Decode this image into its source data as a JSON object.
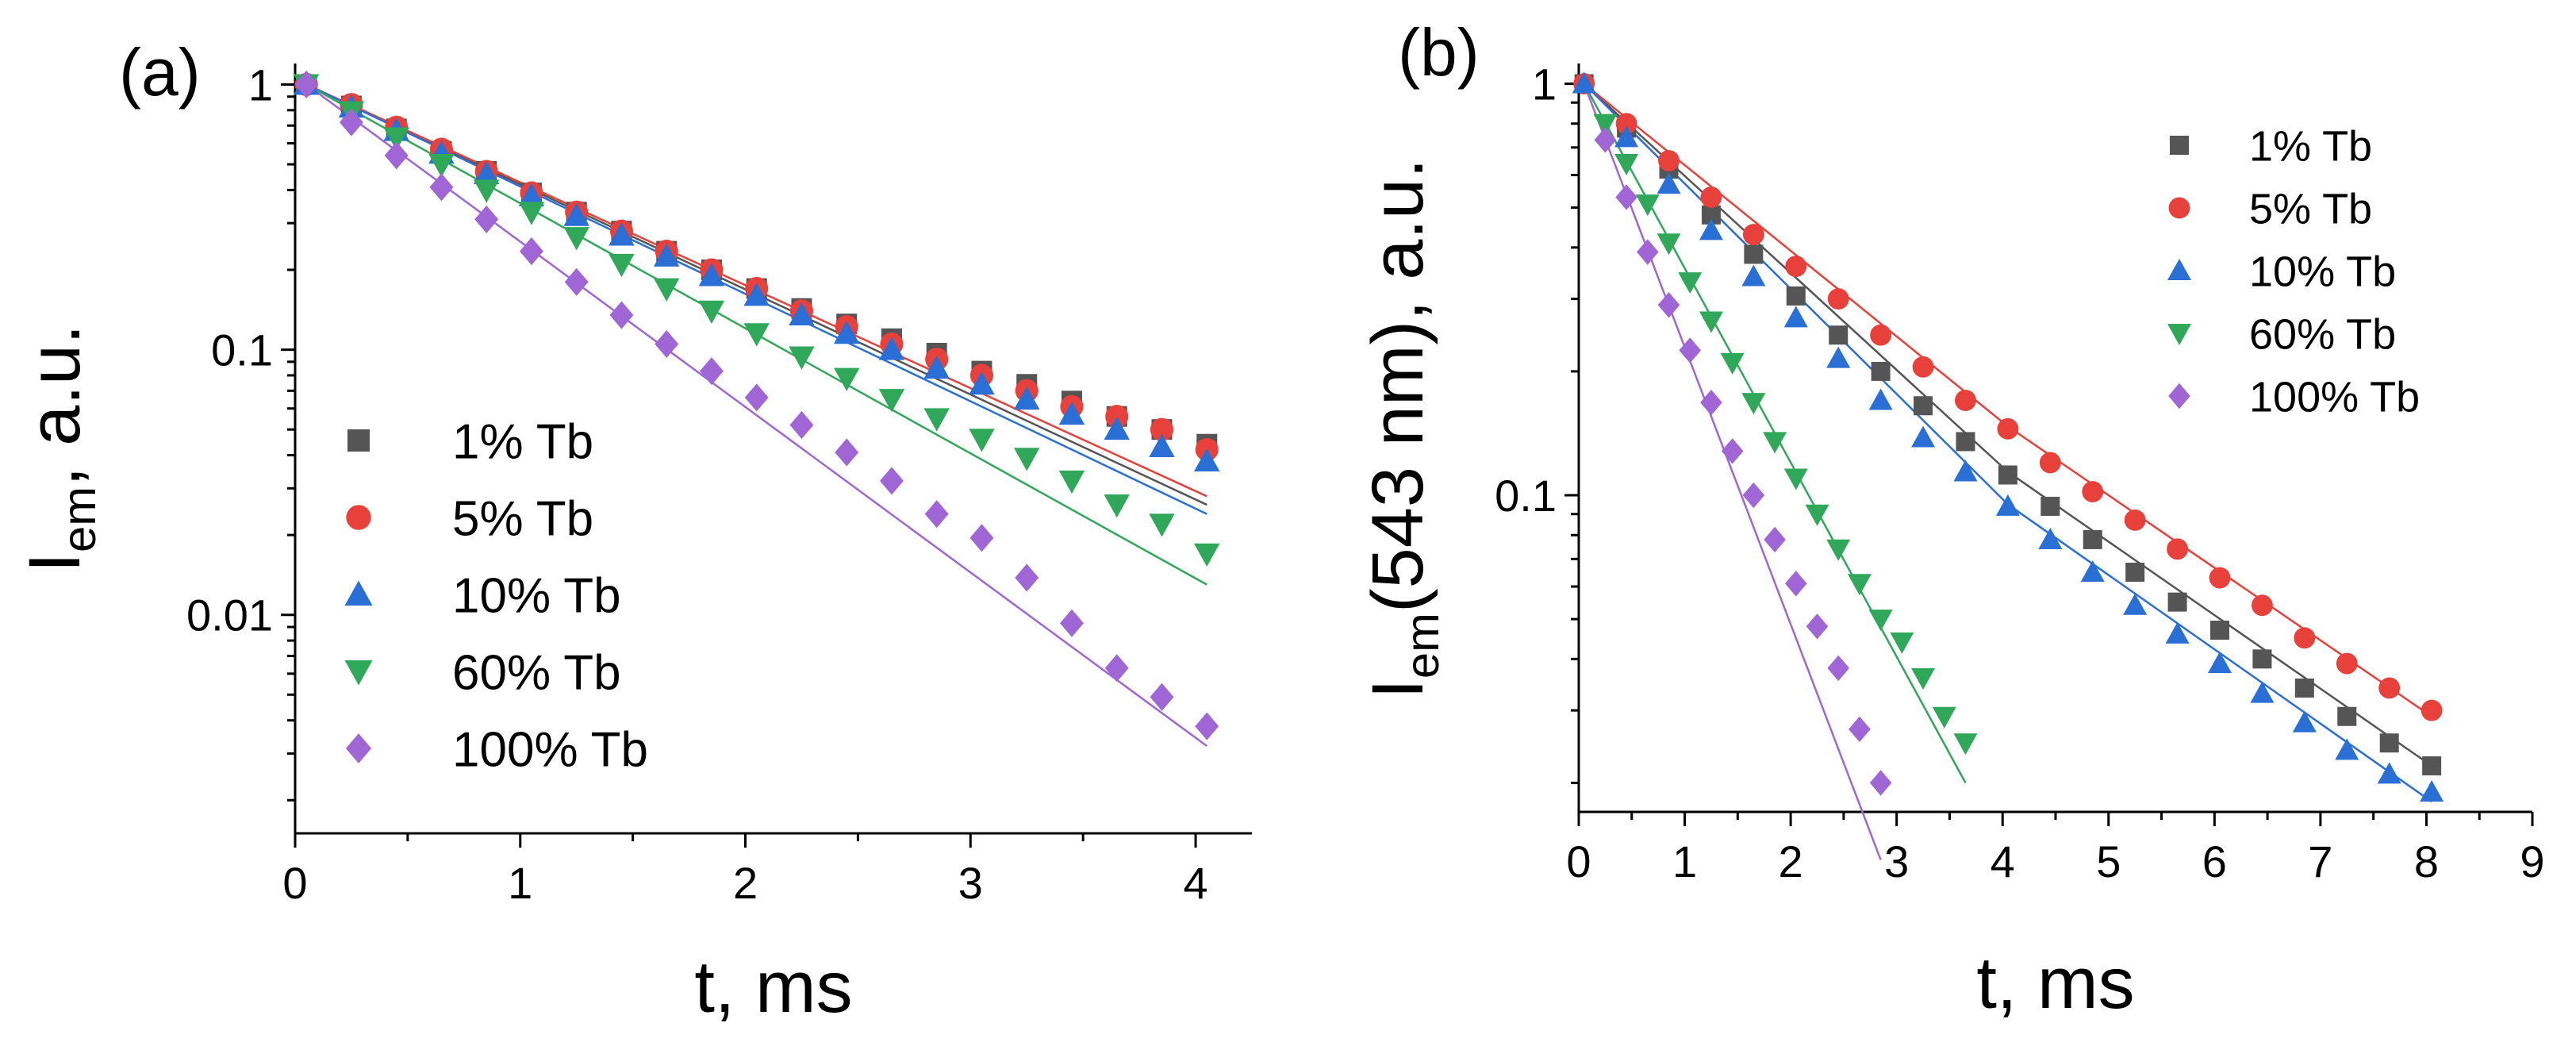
{
  "chart_data": [
    {
      "type": "scatter",
      "panel_label": "(a)",
      "xlabel": "t, ms",
      "ylabel_main": "I",
      "ylabel_sub": "em",
      "ylabel_rest": ", a.u.",
      "yscale": "log",
      "xlim": [
        0,
        4.25
      ],
      "ylim": [
        0.0015,
        1.2
      ],
      "xticks": [
        0,
        1,
        2,
        3,
        4
      ],
      "xtick_labels": [
        "0",
        "1",
        "2",
        "3",
        "4"
      ],
      "yticks": [
        0.01,
        0.1,
        1
      ],
      "ytick_labels": [
        "0.01",
        "0.1",
        "1"
      ],
      "legend_position": "bottom-left",
      "series": [
        {
          "name": "1% Tb",
          "color": "#555555",
          "marker": "square",
          "x": [
            0.05,
            0.25,
            0.45,
            0.65,
            0.85,
            1.05,
            1.25,
            1.45,
            1.65,
            1.85,
            2.05,
            2.25,
            2.45,
            2.65,
            2.85,
            3.05,
            3.25,
            3.45,
            3.65,
            3.85,
            4.05
          ],
          "y": [
            1.0,
            0.83,
            0.68,
            0.56,
            0.47,
            0.39,
            0.33,
            0.28,
            0.235,
            0.2,
            0.17,
            0.143,
            0.125,
            0.11,
            0.097,
            0.083,
            0.074,
            0.064,
            0.056,
            0.05,
            0.044
          ],
          "fit": [
            [
              0.05,
              1.0
            ],
            [
              4.05,
              0.026
            ]
          ]
        },
        {
          "name": "5% Tb",
          "color": "#e8403a",
          "marker": "circle",
          "x": [
            0.05,
            0.25,
            0.45,
            0.65,
            0.85,
            1.05,
            1.25,
            1.45,
            1.65,
            1.85,
            2.05,
            2.25,
            2.45,
            2.65,
            2.85,
            3.05,
            3.25,
            3.45,
            3.65,
            3.85,
            4.05
          ],
          "y": [
            1.0,
            0.84,
            0.69,
            0.57,
            0.47,
            0.39,
            0.33,
            0.28,
            0.235,
            0.2,
            0.17,
            0.14,
            0.122,
            0.105,
            0.092,
            0.08,
            0.07,
            0.061,
            0.056,
            0.05,
            0.042
          ],
          "fit": [
            [
              0.05,
              1.0
            ],
            [
              4.05,
              0.028
            ]
          ]
        },
        {
          "name": "10% Tb",
          "color": "#2a6fd6",
          "marker": "triangle-up",
          "x": [
            0.05,
            0.25,
            0.45,
            0.65,
            0.85,
            1.05,
            1.25,
            1.45,
            1.65,
            1.85,
            2.05,
            2.25,
            2.45,
            2.65,
            2.85,
            3.05,
            3.25,
            3.45,
            3.65,
            3.85,
            4.05
          ],
          "y": [
            1.0,
            0.82,
            0.67,
            0.55,
            0.46,
            0.38,
            0.32,
            0.27,
            0.225,
            0.19,
            0.16,
            0.135,
            0.115,
            0.1,
            0.085,
            0.074,
            0.065,
            0.057,
            0.05,
            0.043,
            0.038
          ],
          "fit": [
            [
              0.05,
              1.0
            ],
            [
              4.05,
              0.024
            ]
          ]
        },
        {
          "name": "60% Tb",
          "color": "#2fa85a",
          "marker": "triangle-down",
          "x": [
            0.05,
            0.25,
            0.45,
            0.65,
            0.85,
            1.05,
            1.25,
            1.45,
            1.65,
            1.85,
            2.05,
            2.25,
            2.45,
            2.65,
            2.85,
            3.05,
            3.25,
            3.45,
            3.65,
            3.85,
            4.05
          ],
          "y": [
            1.0,
            0.79,
            0.63,
            0.5,
            0.4,
            0.33,
            0.265,
            0.21,
            0.17,
            0.14,
            0.115,
            0.094,
            0.078,
            0.065,
            0.055,
            0.046,
            0.039,
            0.032,
            0.026,
            0.022,
            0.017
          ],
          "fit": [
            [
              0.05,
              1.0
            ],
            [
              4.05,
              0.013
            ]
          ]
        },
        {
          "name": "100% Tb",
          "color": "#a066d6",
          "marker": "diamond",
          "x": [
            0.05,
            0.25,
            0.45,
            0.65,
            0.85,
            1.05,
            1.25,
            1.45,
            1.65,
            1.85,
            2.05,
            2.25,
            2.45,
            2.65,
            2.85,
            3.05,
            3.25,
            3.45,
            3.65,
            3.85,
            4.05
          ],
          "y": [
            1.0,
            0.72,
            0.54,
            0.41,
            0.31,
            0.235,
            0.18,
            0.135,
            0.105,
            0.083,
            0.066,
            0.052,
            0.041,
            0.032,
            0.024,
            0.0195,
            0.0138,
            0.0093,
            0.0063,
            0.0049,
            0.0038
          ],
          "fit": [
            [
              0.05,
              1.0
            ],
            [
              4.05,
              0.0032
            ]
          ]
        }
      ]
    },
    {
      "type": "scatter",
      "panel_label": "(b)",
      "xlabel": "t, ms",
      "ylabel_main": "I",
      "ylabel_sub": "em",
      "ylabel_rest": "(543 nm), a.u.",
      "yscale": "log",
      "xlim": [
        0,
        9
      ],
      "ylim": [
        0.017,
        1.12
      ],
      "xticks": [
        0,
        1,
        2,
        3,
        4,
        5,
        6,
        7,
        8,
        9
      ],
      "xtick_labels": [
        "0",
        "1",
        "2",
        "3",
        "4",
        "5",
        "6",
        "7",
        "8",
        "9"
      ],
      "yticks": [
        0.1,
        1
      ],
      "ytick_labels": [
        "0.1",
        "1"
      ],
      "legend_position": "top-right",
      "series": [
        {
          "name": "1% Tb",
          "color": "#555555",
          "marker": "square",
          "x": [
            0.05,
            0.45,
            0.85,
            1.25,
            1.65,
            2.05,
            2.45,
            2.85,
            3.25,
            3.65,
            4.05,
            4.45,
            4.85,
            5.25,
            5.65,
            6.05,
            6.45,
            6.85,
            7.25,
            7.65,
            8.05
          ],
          "y": [
            1.0,
            0.78,
            0.62,
            0.48,
            0.385,
            0.305,
            0.245,
            0.2,
            0.165,
            0.135,
            0.112,
            0.094,
            0.078,
            0.065,
            0.055,
            0.047,
            0.04,
            0.034,
            0.029,
            0.025,
            0.022
          ],
          "fit": [
            [
              0.05,
              1.0
            ],
            [
              4.05,
              0.114
            ],
            [
              8.05,
              0.022
            ]
          ]
        },
        {
          "name": "5% Tb",
          "color": "#e8403a",
          "marker": "circle",
          "x": [
            0.05,
            0.45,
            0.85,
            1.25,
            1.65,
            2.05,
            2.45,
            2.85,
            3.25,
            3.65,
            4.05,
            4.45,
            4.85,
            5.25,
            5.65,
            6.05,
            6.45,
            6.85,
            7.25,
            7.65,
            8.05
          ],
          "y": [
            1.0,
            0.8,
            0.65,
            0.53,
            0.43,
            0.36,
            0.3,
            0.245,
            0.205,
            0.17,
            0.145,
            0.12,
            0.102,
            0.087,
            0.074,
            0.063,
            0.054,
            0.045,
            0.039,
            0.034,
            0.03
          ],
          "fit": [
            [
              0.05,
              1.0
            ],
            [
              4.05,
              0.147
            ],
            [
              8.05,
              0.029
            ]
          ]
        },
        {
          "name": "10% Tb",
          "color": "#2a6fd6",
          "marker": "triangle-up",
          "x": [
            0.05,
            0.45,
            0.85,
            1.25,
            1.65,
            2.05,
            2.45,
            2.85,
            3.25,
            3.65,
            4.05,
            4.45,
            4.85,
            5.25,
            5.65,
            6.05,
            6.45,
            6.85,
            7.25,
            7.65,
            8.05
          ],
          "y": [
            1.0,
            0.74,
            0.57,
            0.44,
            0.34,
            0.27,
            0.215,
            0.17,
            0.138,
            0.114,
            0.094,
            0.078,
            0.065,
            0.054,
            0.046,
            0.039,
            0.033,
            0.028,
            0.024,
            0.021,
            0.019
          ],
          "fit": [
            [
              0.05,
              1.0
            ],
            [
              4.05,
              0.095
            ],
            [
              8.05,
              0.018
            ]
          ]
        },
        {
          "name": "60% Tb",
          "color": "#2fa85a",
          "marker": "triangle-down",
          "x": [
            0.25,
            0.45,
            0.65,
            0.85,
            1.05,
            1.25,
            1.45,
            1.65,
            1.85,
            2.05,
            2.25,
            2.45,
            2.65,
            2.85,
            3.05,
            3.25,
            3.45,
            3.65
          ],
          "y": [
            0.8,
            0.64,
            0.51,
            0.41,
            0.33,
            0.265,
            0.21,
            0.168,
            0.135,
            0.11,
            0.09,
            0.074,
            0.061,
            0.05,
            0.044,
            0.036,
            0.029,
            0.025
          ],
          "fit": [
            [
              0.05,
              1.0
            ],
            [
              3.65,
              0.02
            ]
          ]
        },
        {
          "name": "100% Tb",
          "color": "#a066d6",
          "marker": "diamond",
          "x": [
            0.25,
            0.45,
            0.65,
            0.85,
            1.05,
            1.25,
            1.45,
            1.65,
            1.85,
            2.05,
            2.25,
            2.45,
            2.65,
            2.85
          ],
          "y": [
            0.73,
            0.53,
            0.39,
            0.29,
            0.225,
            0.168,
            0.128,
            0.1,
            0.078,
            0.061,
            0.048,
            0.038,
            0.027,
            0.02
          ],
          "fit": [
            [
              0.05,
              1.0
            ],
            [
              2.85,
              0.013
            ]
          ]
        }
      ]
    }
  ]
}
